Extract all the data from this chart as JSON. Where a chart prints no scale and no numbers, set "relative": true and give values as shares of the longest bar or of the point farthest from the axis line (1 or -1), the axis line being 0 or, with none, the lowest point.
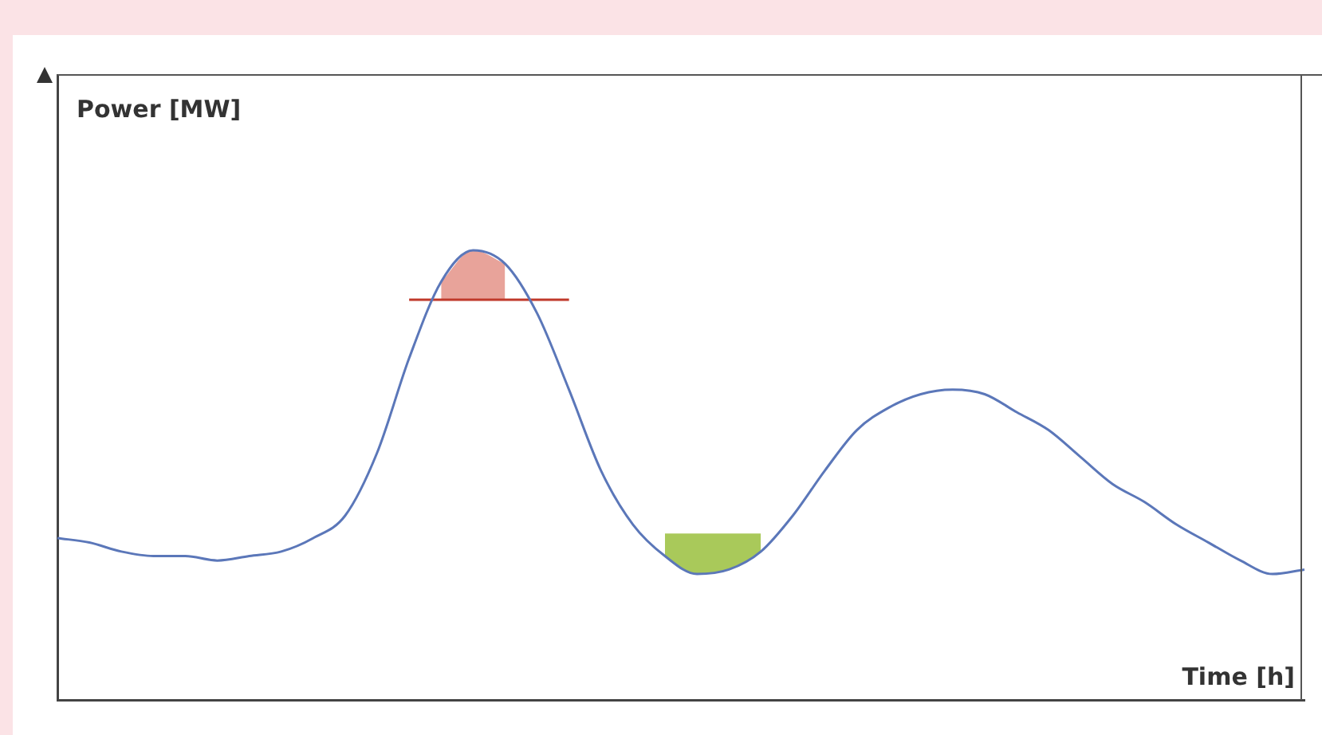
{
  "chart_data": {
    "type": "line",
    "relative": true,
    "xlabel": "Time [h]",
    "annotations": [
      "Power [MW]"
    ],
    "legend": false,
    "grid": false,
    "marker": "none",
    "categories": [
      null,
      null,
      null,
      null,
      null,
      null,
      null,
      null,
      null,
      null,
      null,
      null,
      null,
      null,
      null,
      null,
      null,
      null,
      null,
      null,
      null,
      null,
      null,
      null,
      null,
      null,
      null,
      null,
      null,
      null,
      null,
      null,
      null,
      null,
      null,
      null,
      null,
      null,
      null,
      null
    ],
    "series": [
      {
        "type": "line",
        "color": "#5b77b9",
        "values": [
          0.36,
          0.35,
          0.33,
          0.32,
          0.32,
          0.31,
          0.32,
          0.33,
          0.36,
          0.41,
          0.55,
          0.76,
          0.93,
          1,
          0.97,
          0.86,
          0.69,
          0.51,
          0.39,
          0.32,
          0.28,
          0.29,
          0.33,
          0.41,
          0.51,
          0.6,
          0.65,
          0.68,
          0.69,
          0.68,
          0.64,
          0.6,
          0.54,
          0.48,
          0.44,
          0.39,
          0.35,
          0.31,
          0.28,
          0.29
        ]
      },
      {
        "type": "line",
        "color": "#c0392b",
        "values": [
          null,
          null,
          null,
          null,
          null,
          null,
          null,
          null,
          null,
          null,
          null,
          0.89,
          0.89,
          0.89,
          0.89,
          0.89,
          0.89,
          null,
          null,
          null,
          null,
          null,
          null,
          null,
          null,
          null,
          null,
          null,
          null,
          null,
          null,
          null,
          null,
          null,
          null,
          null,
          null,
          null,
          null,
          null
        ]
      },
      {
        "type": "area",
        "color": "#e8a39a",
        "values": [
          null,
          null,
          null,
          null,
          null,
          null,
          null,
          null,
          null,
          null,
          null,
          null,
          0.93,
          1,
          0.97,
          null,
          null,
          null,
          null,
          null,
          null,
          null,
          null,
          null,
          null,
          null,
          null,
          null,
          null,
          null,
          null,
          null,
          null,
          null,
          null,
          null,
          null,
          null,
          null,
          null
        ]
      },
      {
        "type": "area",
        "color": "#a9c95a",
        "values": [
          null,
          null,
          null,
          null,
          null,
          null,
          null,
          null,
          null,
          null,
          null,
          null,
          null,
          null,
          null,
          null,
          null,
          null,
          null,
          0.37,
          0.37,
          0.37,
          0.37,
          null,
          null,
          null,
          null,
          null,
          null,
          null,
          null,
          null,
          null,
          null,
          null,
          null,
          null,
          null,
          null,
          null
        ]
      }
    ]
  }
}
